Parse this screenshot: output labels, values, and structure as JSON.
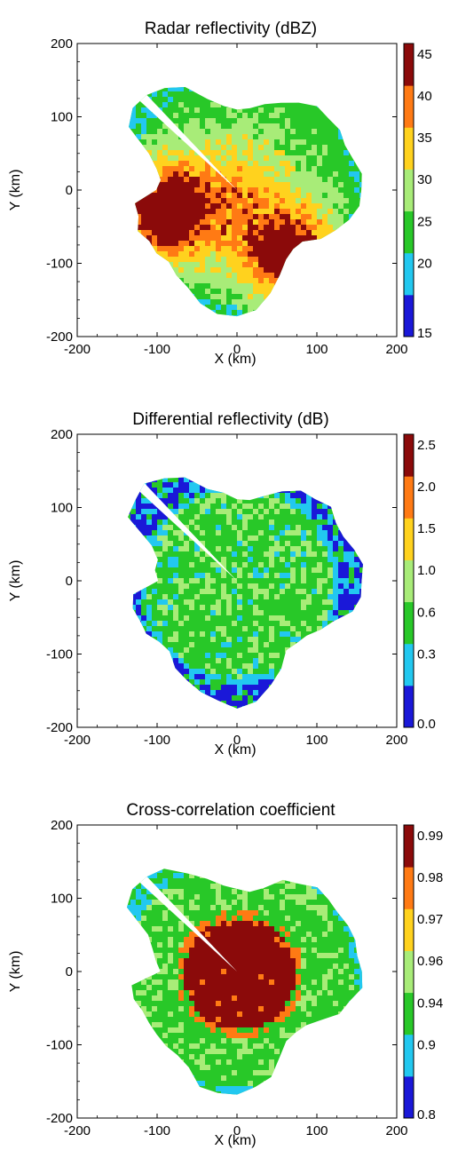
{
  "chart_data": [
    {
      "type": "heatmap",
      "title": "Radar reflectivity (dBZ)",
      "xlabel": "X (km)",
      "ylabel": "Y (km)",
      "xlim": [
        -200,
        200
      ],
      "ylim": [
        -200,
        200
      ],
      "x_ticks": [
        "-200",
        "-100",
        "0",
        "100",
        "200"
      ],
      "y_ticks": [
        "-200",
        "-100",
        "0",
        "100",
        "200"
      ],
      "colorbar": {
        "labels": [
          "15",
          "20",
          "25",
          "30",
          "35",
          "40",
          "45"
        ],
        "colors": [
          "#1a18d8",
          "#22c8f0",
          "#28c828",
          "#a8ec78",
          "#ffd21e",
          "#ff7a14",
          "#8b0a0a"
        ]
      }
    },
    {
      "type": "heatmap",
      "title": "Differential reflectivity (dB)",
      "xlabel": "X (km)",
      "ylabel": "Y (km)",
      "xlim": [
        -200,
        200
      ],
      "ylim": [
        -200,
        200
      ],
      "x_ticks": [
        "-200",
        "-100",
        "0",
        "100",
        "200"
      ],
      "y_ticks": [
        "-200",
        "-100",
        "0",
        "100",
        "200"
      ],
      "colorbar": {
        "labels": [
          "0.0",
          "0.3",
          "0.6",
          "1.0",
          "1.5",
          "2.0",
          "2.5"
        ],
        "colors": [
          "#1a18d8",
          "#22c8f0",
          "#28c828",
          "#a8ec78",
          "#ffd21e",
          "#ff7a14",
          "#8b0a0a"
        ]
      }
    },
    {
      "type": "heatmap",
      "title": "Cross-correlation coefficient",
      "xlabel": "X (km)",
      "ylabel": "Y (km)",
      "xlim": [
        -200,
        200
      ],
      "ylim": [
        -200,
        200
      ],
      "x_ticks": [
        "-200",
        "-100",
        "0",
        "100",
        "200"
      ],
      "y_ticks": [
        "-200",
        "-100",
        "0",
        "100",
        "200"
      ],
      "colorbar": {
        "labels": [
          "0.8",
          "0.9",
          "0.94",
          "0.96",
          "0.97",
          "0.98",
          "0.99"
        ],
        "colors": [
          "#1a18d8",
          "#22c8f0",
          "#28c828",
          "#a8ec78",
          "#ffd21e",
          "#ff7a14",
          "#8b0a0a"
        ]
      }
    }
  ]
}
